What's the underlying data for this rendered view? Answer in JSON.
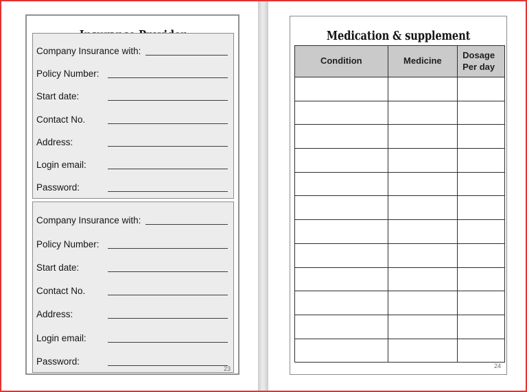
{
  "colors": {
    "frame_border": "#e13434",
    "gutter": "#d9d9d9",
    "box_border": "#8a8a8a",
    "form_box_bg": "#ececec",
    "table_header_bg": "#cacaca",
    "table_border": "#2d2d2d"
  },
  "left_page": {
    "title": "Insurance Provider",
    "page_number": "23",
    "sections": [
      {
        "fields": [
          "Company Insurance with:",
          "Policy Number:",
          "Start date:",
          "Contact No.",
          "Address:",
          "Login email:",
          "Password:"
        ]
      },
      {
        "fields": [
          "Company Insurance with:",
          "Policy Number:",
          "Start date:",
          "Contact No.",
          "Address:",
          "Login email:",
          "Password:"
        ]
      }
    ]
  },
  "right_page": {
    "title": "Medication & supplement",
    "page_number": "24",
    "table": {
      "headers": [
        "Condition",
        "Medicine",
        "Dosage\nPer day"
      ],
      "empty_row_count": 12
    }
  }
}
